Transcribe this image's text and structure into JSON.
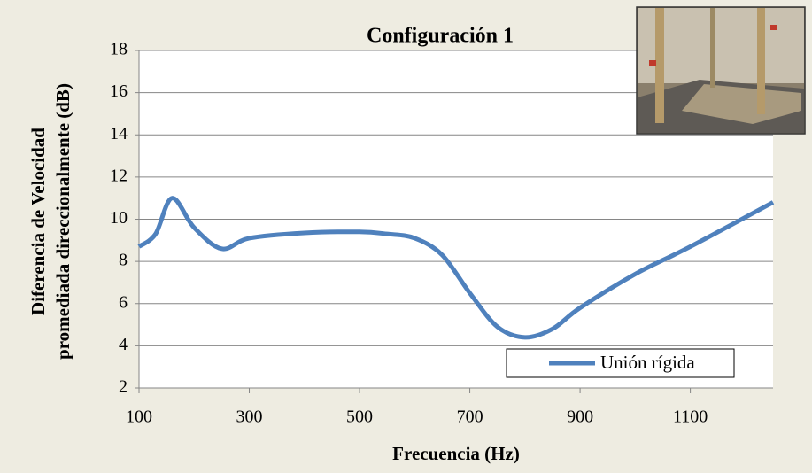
{
  "chart_data": {
    "type": "line",
    "title": "Configuración 1",
    "xlabel": "Frecuencia (Hz)",
    "ylabel": [
      "Diferencia de Velocidad",
      "promediada direccionalmente (dB)"
    ],
    "x": [
      100,
      130,
      160,
      200,
      250,
      300,
      400,
      500,
      550,
      600,
      650,
      700,
      750,
      800,
      850,
      900,
      1000,
      1100,
      1250
    ],
    "series": [
      {
        "name": "Unión rígida",
        "color": "#4f81bd",
        "values": [
          8.7,
          9.3,
          11.0,
          9.6,
          8.6,
          9.1,
          9.35,
          9.4,
          9.3,
          9.1,
          8.3,
          6.5,
          4.9,
          4.4,
          4.8,
          5.8,
          7.4,
          8.7,
          10.8
        ]
      }
    ],
    "xlim": [
      100,
      1250
    ],
    "xticks": [
      100,
      300,
      500,
      700,
      900,
      1100
    ],
    "ylim": [
      2,
      18
    ],
    "yticks": [
      2,
      4,
      6,
      8,
      10,
      12,
      14,
      16,
      18
    ],
    "grid": true,
    "legend": "lower-right"
  }
}
